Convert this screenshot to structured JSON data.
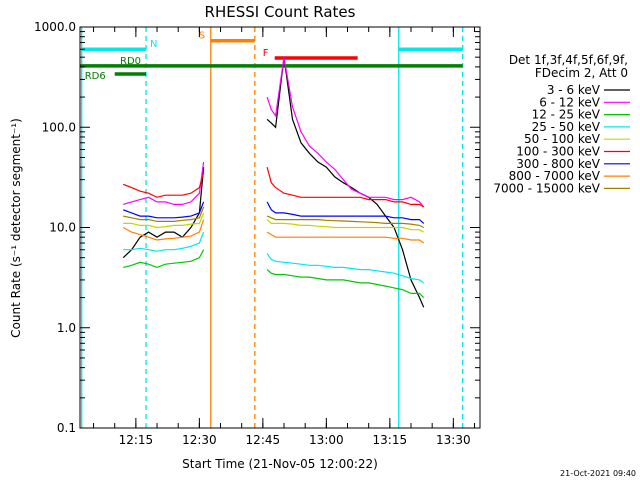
{
  "chart_data": {
    "type": "line",
    "title": "RHESSI Count Rates",
    "xlabel": "Start Time (21-Nov-05 12:00:22)",
    "ylabel": "Count Rate (s⁻¹ detector segment⁻¹)",
    "footer": "21-Oct-2021 09:40",
    "legend_header": [
      "Det 1f,3f,4f,5f,6f,9f,",
      "FDecim 2, Att 0"
    ],
    "log_y": true,
    "xlim": [
      1.8,
      96.3
    ],
    "xticks": [
      {
        "value": 15,
        "label": "12:15"
      },
      {
        "value": 30,
        "label": "12:30"
      },
      {
        "value": 45,
        "label": "12:45"
      },
      {
        "value": 60,
        "label": "13:00"
      },
      {
        "value": 75,
        "label": "13:15"
      },
      {
        "value": 90,
        "label": "13:30"
      }
    ],
    "ylim": [
      0.1,
      1000
    ],
    "yticks": [
      {
        "value": 1000,
        "label": "1000.0"
      },
      {
        "value": 100,
        "label": "100.0"
      },
      {
        "value": 10,
        "label": "10.0"
      },
      {
        "value": 1,
        "label": "1.0"
      },
      0.1
    ],
    "x": [
      12,
      14,
      16,
      18,
      20,
      22,
      24,
      26,
      28,
      30,
      31,
      38,
      46,
      47,
      48,
      50,
      52,
      54,
      56,
      58,
      60,
      62,
      64,
      66,
      68,
      70,
      72,
      74,
      76,
      78,
      80,
      82,
      83
    ],
    "series": [
      {
        "name": "3 - 6 keV",
        "color": "#000000",
        "values": [
          5,
          6,
          8,
          9,
          8,
          9,
          9,
          8,
          10,
          14,
          40,
          null,
          120,
          110,
          100,
          500,
          120,
          70,
          55,
          45,
          40,
          32,
          28,
          25,
          22,
          20,
          17,
          13,
          10,
          6,
          3,
          2,
          1.6
        ]
      },
      {
        "name": "6 - 12 keV",
        "color": "#ff00ff",
        "values": [
          17,
          18,
          19,
          20,
          18,
          18,
          17,
          17,
          18,
          22,
          45,
          null,
          200,
          150,
          130,
          500,
          160,
          90,
          65,
          55,
          45,
          38,
          30,
          24,
          22,
          20,
          20,
          20,
          19,
          19,
          20,
          18,
          16
        ]
      },
      {
        "name": "12 - 25 keV",
        "color": "#00c800",
        "values": [
          4,
          4.2,
          4.5,
          4.3,
          4,
          4.3,
          4.4,
          4.5,
          4.6,
          5,
          6,
          null,
          3.8,
          3.5,
          3.4,
          3.4,
          3.3,
          3.2,
          3.2,
          3.1,
          3,
          3,
          3,
          2.9,
          2.8,
          2.8,
          2.7,
          2.6,
          2.5,
          2.4,
          2.2,
          2.2,
          2
        ]
      },
      {
        "name": "25 - 50 keV",
        "color": "#00e8e8",
        "values": [
          6,
          6,
          6.2,
          6,
          5.8,
          6,
          6,
          6.2,
          6.5,
          7,
          9,
          null,
          5.5,
          4.8,
          4.6,
          4.5,
          4.4,
          4.3,
          4.2,
          4.2,
          4.1,
          4,
          4,
          3.9,
          3.8,
          3.8,
          3.7,
          3.6,
          3.5,
          3.3,
          3.1,
          3,
          2.8
        ]
      },
      {
        "name": "50 - 100 keV",
        "color": "#c0d800",
        "values": [
          11,
          11,
          10.5,
          10.5,
          10,
          10.2,
          10.5,
          10.5,
          10.8,
          11,
          14,
          null,
          12,
          11,
          11,
          11,
          10.8,
          10.5,
          10.5,
          10.3,
          10.2,
          10,
          10,
          10,
          10,
          10,
          10,
          10,
          10,
          10,
          9.5,
          9.5,
          9
        ]
      },
      {
        "name": "100 - 300 keV",
        "color": "#ff0000",
        "values": [
          27,
          25,
          23,
          22,
          20,
          21,
          21,
          21,
          22,
          25,
          35,
          null,
          40,
          28,
          25,
          22,
          21,
          20,
          20,
          20,
          20,
          20,
          20,
          20,
          20,
          19,
          19,
          19,
          18,
          18,
          17,
          17,
          16
        ]
      },
      {
        "name": "300 - 800 keV",
        "color": "#0000ff",
        "values": [
          15,
          14,
          13,
          13,
          12.5,
          12.5,
          12.5,
          12.7,
          13,
          14,
          18,
          null,
          18,
          15,
          14,
          14,
          13.5,
          13,
          13,
          13,
          13,
          13,
          13,
          13,
          13,
          13,
          13,
          13,
          12.5,
          12.5,
          12,
          12,
          11
        ]
      },
      {
        "name": "800 - 7000 keV",
        "color": "#ff8000",
        "values": [
          10,
          9,
          8.5,
          8,
          7.5,
          7.7,
          7.8,
          8,
          8.2,
          9,
          12,
          null,
          9,
          8.5,
          8,
          8,
          8,
          8,
          8,
          8,
          8,
          8,
          8,
          8,
          8,
          8,
          8,
          8,
          7.8,
          7.8,
          7.5,
          7.5,
          7
        ]
      },
      {
        "name": "7000 - 15000 keV",
        "color": "#a08000",
        "values": [
          13,
          12.5,
          12,
          12,
          11.5,
          11.5,
          11.5,
          11.8,
          12,
          12.5,
          16,
          null,
          13,
          12.5,
          12,
          12,
          12,
          12,
          12,
          12,
          11.8,
          11.7,
          11.6,
          11.5,
          11.4,
          11.3,
          11.2,
          11,
          11,
          11,
          10.8,
          10.5,
          10
        ]
      }
    ],
    "vlines": [
      {
        "x": 2.2,
        "color": "#00e8e8",
        "dashed": false
      },
      {
        "x": 17.4,
        "color": "#00e8e8",
        "dashed": true
      },
      {
        "x": 32.7,
        "color": "#ff8000",
        "dashed": false
      },
      {
        "x": 43.1,
        "color": "#ff8000",
        "dashed": true
      },
      {
        "x": 77.1,
        "color": "#00e8e8",
        "dashed": false
      },
      {
        "x": 92.2,
        "color": "#00e8e8",
        "dashed": true
      }
    ],
    "flags": [
      {
        "label": "N",
        "color": "#00e8e8",
        "level": 600,
        "ranges": [
          [
            2.2,
            17.4
          ],
          [
            77.1,
            92.2
          ]
        ]
      },
      {
        "label": "S",
        "color": "#ff8000",
        "level": 730,
        "ranges": [
          [
            32.7,
            43.1
          ]
        ]
      },
      {
        "label": "F",
        "color": "#ff0000",
        "level": 490,
        "ranges": [
          [
            47.8,
            67.4
          ]
        ]
      },
      {
        "label": "RD0",
        "color": "#008000",
        "level": 410,
        "ranges": [
          [
            1.8,
            92.2
          ]
        ]
      },
      {
        "label": "RD6",
        "color": "#008000",
        "level": 340,
        "ranges": [
          [
            10.0,
            17.4
          ]
        ]
      }
    ]
  }
}
